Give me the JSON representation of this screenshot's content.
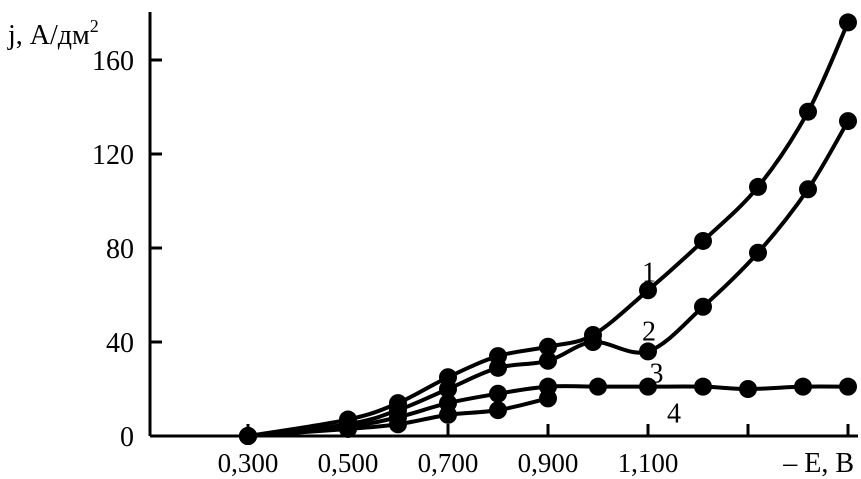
{
  "chart_data": {
    "type": "line",
    "ylabel": "j, А/дм",
    "ylabel_sup": "2",
    "xlabel": "– E, B",
    "x_tick_labels": [
      "0,300",
      "0,500",
      "0,700",
      "0,900",
      "1,100"
    ],
    "x_tick_values": [
      0.3,
      0.5,
      0.7,
      0.9,
      1.1
    ],
    "x_minor_ticks": [
      1.3,
      1.5
    ],
    "y_ticks": [
      0,
      40,
      80,
      120,
      160
    ],
    "xlim": [
      0.3,
      1.5
    ],
    "ylim": [
      0,
      160
    ],
    "grid": false,
    "marker": "filled-circle",
    "line_color": "#000000",
    "series": [
      {
        "name": "1",
        "x": [
          0.3,
          0.5,
          0.6,
          0.7,
          0.8,
          0.9,
          0.99,
          1.1,
          1.21,
          1.32,
          1.42,
          1.5
        ],
        "y": [
          0,
          7,
          14,
          25,
          34,
          38,
          43,
          62,
          83,
          106,
          138,
          176
        ]
      },
      {
        "name": "2",
        "x": [
          0.3,
          0.5,
          0.6,
          0.7,
          0.8,
          0.9,
          0.99,
          1.1,
          1.21,
          1.32,
          1.42,
          1.5
        ],
        "y": [
          0,
          5,
          11,
          20,
          29,
          32,
          40,
          36,
          55,
          78,
          105,
          134
        ]
      },
      {
        "name": "3",
        "x": [
          0.3,
          0.5,
          0.6,
          0.7,
          0.8,
          0.9,
          1.0,
          1.1,
          1.21,
          1.3,
          1.41,
          1.5
        ],
        "y": [
          0,
          4,
          8,
          14,
          18,
          21,
          21,
          21,
          21,
          20,
          21,
          21
        ]
      },
      {
        "name": "4",
        "x": [
          0.3,
          0.5,
          0.6,
          0.7,
          0.8,
          0.9
        ],
        "y": [
          0,
          3,
          5,
          9,
          11,
          16
        ]
      }
    ]
  }
}
